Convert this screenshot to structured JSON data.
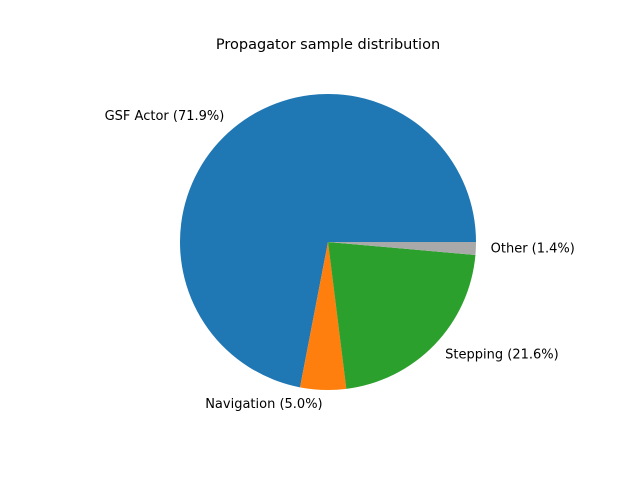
{
  "chart_data": {
    "type": "pie",
    "title": "Propagator sample distribution",
    "slices": [
      {
        "label": "GSF Actor (71.9%)",
        "value": 71.9,
        "color": "#1f77b4"
      },
      {
        "label": "Navigation (5.0%)",
        "value": 5.0,
        "color": "#ff7f0e"
      },
      {
        "label": "Stepping (21.6%)",
        "value": 21.6,
        "color": "#2ca02c"
      },
      {
        "label": "Other (1.4%)",
        "value": 1.4,
        "color": "#a9a9a9"
      }
    ],
    "start_angle_deg": 0,
    "direction": "counterclockwise"
  }
}
